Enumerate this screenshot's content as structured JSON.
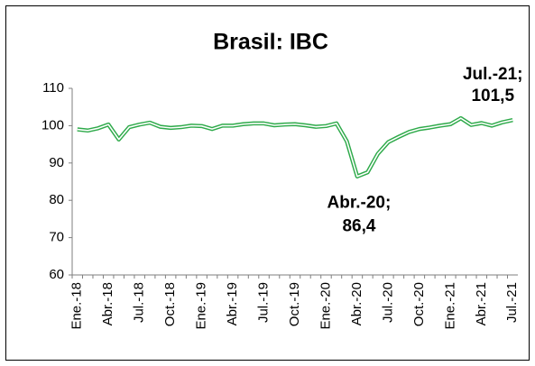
{
  "chart_data": {
    "type": "line",
    "title": "Brasil: IBC",
    "categories": [
      "Ene.-18",
      null,
      null,
      "Abr.-18",
      null,
      null,
      "Jul.-18",
      null,
      null,
      "Oct.-18",
      null,
      null,
      "Ene.-19",
      null,
      null,
      "Abr.-19",
      null,
      null,
      "Jul.-19",
      null,
      null,
      "Oct.-19",
      null,
      null,
      "Ene.-20",
      null,
      null,
      "Abr.-20",
      null,
      null,
      "Jul.-20",
      null,
      null,
      "Oct.-20",
      null,
      null,
      "Ene.-21",
      null,
      null,
      "Abr.-21",
      null,
      null,
      "Jul.-21"
    ],
    "series": [
      {
        "name": "IBC",
        "color": "#2eaa4a",
        "values": [
          99.0,
          98.7,
          99.3,
          100.3,
          96.3,
          99.6,
          100.3,
          100.8,
          99.7,
          99.4,
          99.6,
          100.0,
          99.9,
          99.1,
          100.0,
          100.0,
          100.4,
          100.6,
          100.6,
          100.1,
          100.3,
          100.4,
          100.1,
          99.7,
          99.9,
          100.6,
          95.8,
          86.4,
          87.5,
          92.5,
          95.6,
          97.0,
          98.3,
          99.1,
          99.5,
          100.0,
          100.4,
          102.0,
          100.2,
          100.7,
          100.0,
          100.9,
          101.5
        ],
        "value_labels": [
          null,
          null,
          null,
          null,
          null,
          null,
          null,
          null,
          null,
          null,
          null,
          null,
          null,
          null,
          null,
          null,
          null,
          null,
          null,
          null,
          null,
          null,
          null,
          null,
          null,
          null,
          null,
          [
            "Abr.-20;",
            "86,4"
          ],
          null,
          null,
          null,
          null,
          null,
          null,
          null,
          null,
          null,
          null,
          null,
          null,
          null,
          null,
          [
            "Jul.-21;",
            "101,5"
          ]
        ]
      }
    ],
    "ylim": [
      60,
      110
    ],
    "yticks": [
      60,
      70,
      80,
      90,
      100,
      110
    ],
    "grid": false
  }
}
